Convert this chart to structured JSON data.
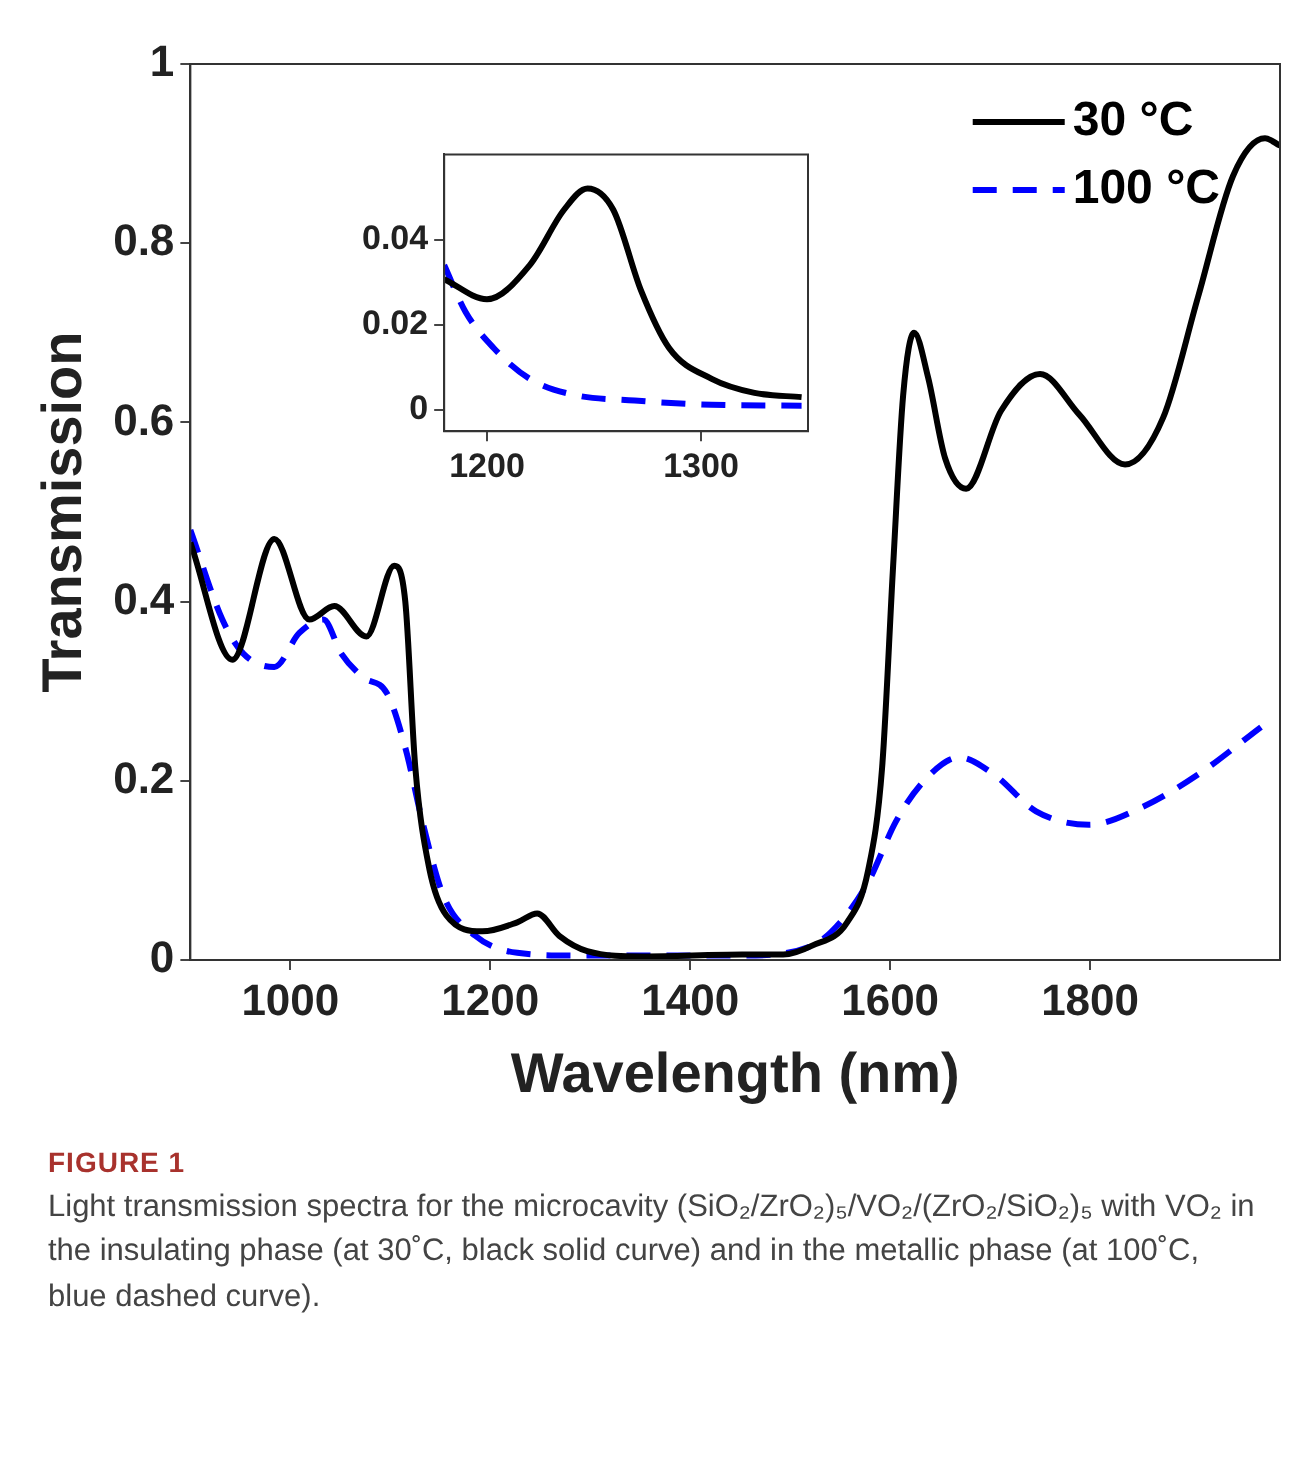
{
  "chart_data": [
    {
      "type": "line",
      "xlabel": "Wavelength (nm)",
      "ylabel": "Transmission",
      "xlim": [
        900,
        1990
      ],
      "ylim": [
        0,
        1
      ],
      "xticks": [
        1000,
        1200,
        1400,
        1600,
        1800
      ],
      "yticks": [
        0,
        0.2,
        0.4,
        0.6,
        0.8,
        1
      ],
      "grid": false,
      "legend": "top right",
      "series": [
        {
          "name": "30 °C",
          "color": "#000000",
          "line_style": "solid",
          "x": [
            900,
            942,
            984,
            1019,
            1044,
            1076,
            1104,
            1115,
            1125,
            1139,
            1156,
            1192,
            1227,
            1247,
            1269,
            1297,
            1353,
            1452,
            1493,
            1522,
            1557,
            1578,
            1592,
            1603,
            1613,
            1624,
            1638,
            1655,
            1676,
            1711,
            1750,
            1789,
            1835,
            1873,
            1908,
            1943,
            1975,
            1990
          ],
          "values": [
            0.466,
            0.335,
            0.47,
            0.38,
            0.395,
            0.361,
            0.44,
            0.4,
            0.215,
            0.102,
            0.05,
            0.032,
            0.042,
            0.052,
            0.027,
            0.01,
            0.004,
            0.006,
            0.006,
            0.016,
            0.042,
            0.1,
            0.215,
            0.44,
            0.63,
            0.7,
            0.65,
            0.56,
            0.526,
            0.613,
            0.654,
            0.609,
            0.553,
            0.605,
            0.74,
            0.875,
            0.917,
            0.909
          ]
        },
        {
          "name": "100 °C",
          "color": "#0000ff",
          "line_style": "dashed",
          "x": [
            900,
            932,
            953,
            984,
            1009,
            1033,
            1051,
            1072,
            1097,
            1115,
            1132,
            1153,
            1185,
            1227,
            1283,
            1452,
            1522,
            1550,
            1578,
            1606,
            1634,
            1669,
            1704,
            1746,
            1799,
            1851,
            1908,
            1971
          ],
          "values": [
            0.48,
            0.38,
            0.342,
            0.327,
            0.365,
            0.38,
            0.342,
            0.316,
            0.297,
            0.237,
            0.155,
            0.072,
            0.027,
            0.008,
            0.005,
            0.005,
            0.016,
            0.042,
            0.087,
            0.155,
            0.2,
            0.226,
            0.207,
            0.166,
            0.151,
            0.17,
            0.207,
            0.26
          ]
        }
      ],
      "annotations": [
        "FIGURE 1",
        "Light transmission spectra for the microcavity (SiO₂/ZrO₂)₅/VO₂/(ZrO₂/SiO₂)₅ with VO₂ in the insulating phase (at 30˚C, black solid curve) and in the metallic phase (at 100˚C, blue dashed curve)."
      ]
    },
    {
      "type": "line",
      "xlim": [
        1180,
        1350
      ],
      "ylim": [
        -0.005,
        0.06
      ],
      "xticks": [
        1200,
        1300
      ],
      "yticks": [
        0,
        0.02,
        0.04
      ],
      "grid": false,
      "series": [
        {
          "color": "#000000",
          "line_style": "solid",
          "x": [
            1180,
            1200,
            1220,
            1236,
            1247,
            1259,
            1272,
            1285,
            1305,
            1325,
            1347
          ],
          "values": [
            0.0307,
            0.026,
            0.034,
            0.047,
            0.052,
            0.047,
            0.028,
            0.0146,
            0.0073,
            0.004,
            0.003
          ]
        },
        {
          "color": "#0000ff",
          "line_style": "dashed",
          "x": [
            1180,
            1190,
            1203,
            1220,
            1240,
            1269,
            1305,
            1347
          ],
          "values": [
            0.034,
            0.023,
            0.0146,
            0.0073,
            0.0036,
            0.0022,
            0.0012,
            0.001
          ]
        }
      ]
    }
  ]
}
